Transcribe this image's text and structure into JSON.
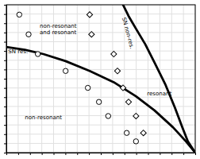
{
  "chart_data": {
    "type": "line",
    "series": [
      {
        "type": "line",
        "color": "#000000",
        "line_style": "solid",
        "x": [
          0.0,
          0.1,
          0.2,
          0.32,
          0.45,
          0.58,
          0.7,
          0.8,
          0.9,
          0.97,
          1.02
        ],
        "values": [
          0.75,
          0.73,
          0.7,
          0.65,
          0.58,
          0.5,
          0.4,
          0.3,
          0.18,
          0.08,
          0.0
        ]
      },
      {
        "type": "line",
        "color": "#000000",
        "line_style": "solid",
        "x": [
          0.63,
          0.66,
          0.7,
          0.75,
          0.8,
          0.86,
          0.91,
          0.95,
          0.98,
          1.02
        ],
        "values": [
          1.05,
          0.97,
          0.88,
          0.77,
          0.64,
          0.48,
          0.32,
          0.18,
          0.08,
          0.0
        ]
      },
      {
        "type": "scatter",
        "marker": "circle",
        "color": "#000000",
        "x": [
          0.07,
          0.12,
          0.17,
          0.32,
          0.44,
          0.5,
          0.55,
          0.65,
          0.7
        ],
        "values": [
          0.98,
          0.84,
          0.7,
          0.58,
          0.46,
          0.36,
          0.26,
          0.14,
          0.08
        ]
      },
      {
        "type": "scatter",
        "marker": "diamond",
        "color": "#000000",
        "x": [
          0.45,
          0.46,
          0.58,
          0.6,
          0.63,
          0.66,
          0.7,
          0.74
        ],
        "values": [
          0.98,
          0.84,
          0.7,
          0.58,
          0.46,
          0.36,
          0.26,
          0.14
        ]
      }
    ],
    "annotations": [
      {
        "text": "non-resonant\nand resonant",
        "x": 0.18,
        "y": 0.88
      },
      {
        "text": "resonant",
        "x": 0.76,
        "y": 0.42
      },
      {
        "text": "non-resonant",
        "x": 0.1,
        "y": 0.25
      },
      {
        "text": "SN res.",
        "x": 0.01,
        "y": 0.72
      },
      {
        "text": "SN non-res.",
        "x": 0.635,
        "y": 0.96
      }
    ],
    "xlim": [
      0.0,
      1.02
    ],
    "ylim": [
      0.0,
      1.05
    ],
    "xticks": [
      0,
      0.06375,
      0.1275,
      0.19125,
      0.255,
      0.31875,
      0.3825,
      0.44625,
      0.51,
      0.57375,
      0.6375,
      0.70125,
      0.765,
      0.82875,
      0.8925,
      0.95625,
      1.02
    ],
    "yticks": [
      0,
      0.065625,
      0.13125,
      0.196875,
      0.2625,
      0.328125,
      0.39375,
      0.459375,
      0.525,
      0.590625,
      0.65625,
      0.721875,
      0.7875,
      0.853125,
      0.91875,
      0.984375,
      1.05
    ],
    "grid": true,
    "tick_labels": false
  }
}
